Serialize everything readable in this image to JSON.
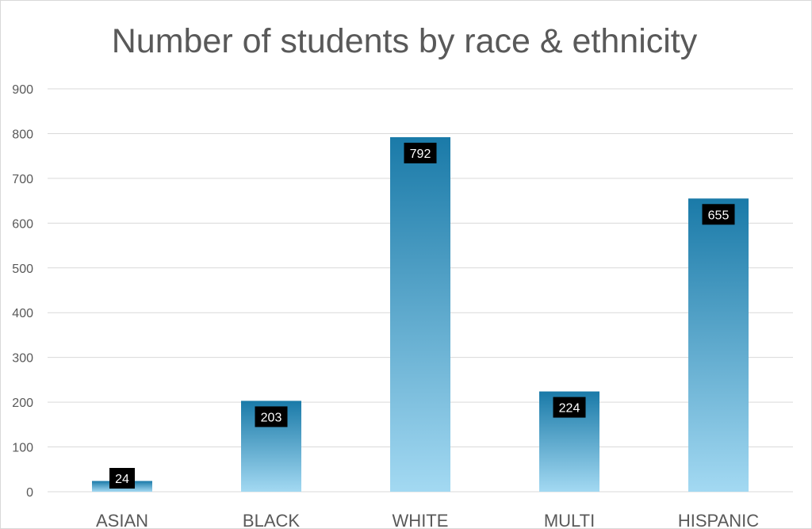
{
  "chart_data": {
    "type": "bar",
    "title": "Number of students by race & ethnicity",
    "categories": [
      "ASIAN",
      "BLACK",
      "WHITE",
      "MULTI",
      "HISPANIC"
    ],
    "values": [
      24,
      203,
      792,
      224,
      655
    ],
    "data_labels": [
      "24",
      "203",
      "792",
      "224",
      "655"
    ],
    "xlabel": "",
    "ylabel": "",
    "ylim": [
      0,
      900
    ],
    "yticks": [
      0,
      100,
      200,
      300,
      400,
      500,
      600,
      700,
      800,
      900
    ],
    "grid": true,
    "legend": "none",
    "colors": {
      "bar_top": "#1a7aa8",
      "bar_bottom": "#a3d9f2",
      "label_box": "#000000",
      "gridline": "#d9d9d9",
      "text": "#595959"
    }
  }
}
